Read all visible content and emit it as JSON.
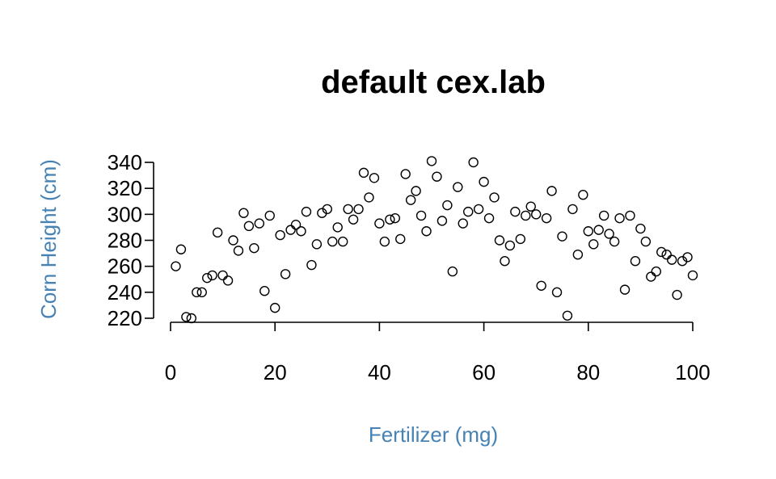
{
  "chart_data": {
    "type": "scatter",
    "title": "default cex.lab",
    "xlabel": "Fertilizer (mg)",
    "ylabel": "Corn Height (cm)",
    "label_color": "#4682B4",
    "xlim": [
      0,
      100
    ],
    "ylim": [
      220,
      340
    ],
    "x_ticks": [
      0,
      20,
      40,
      60,
      80,
      100
    ],
    "y_ticks": [
      220,
      240,
      260,
      280,
      300,
      320,
      340
    ],
    "grid": false,
    "marker": "open-circle",
    "x": [
      1,
      2,
      3,
      4,
      5,
      6,
      7,
      8,
      9,
      10,
      11,
      12,
      13,
      14,
      15,
      16,
      17,
      18,
      19,
      20,
      21,
      22,
      23,
      24,
      25,
      26,
      27,
      28,
      29,
      30,
      31,
      32,
      33,
      34,
      35,
      36,
      37,
      38,
      39,
      40,
      41,
      42,
      43,
      44,
      45,
      46,
      47,
      48,
      49,
      50,
      51,
      52,
      53,
      54,
      55,
      56,
      57,
      58,
      59,
      60,
      61,
      62,
      63,
      64,
      65,
      66,
      67,
      68,
      69,
      70,
      71,
      72,
      73,
      74,
      75,
      76,
      77,
      78,
      79,
      80,
      81,
      82,
      83,
      84,
      85,
      86,
      87,
      88,
      89,
      90,
      91,
      92,
      93,
      94,
      95,
      96,
      97,
      98,
      99,
      100
    ],
    "y": [
      260,
      273,
      221,
      220,
      240,
      240,
      251,
      253,
      286,
      253,
      249,
      280,
      272,
      301,
      291,
      274,
      293,
      241,
      299,
      228,
      284,
      254,
      288,
      292,
      287,
      302,
      261,
      277,
      301,
      304,
      279,
      290,
      279,
      304,
      296,
      304,
      332,
      313,
      328,
      293,
      279,
      296,
      297,
      281,
      331,
      311,
      318,
      299,
      287,
      341,
      329,
      295,
      307,
      256,
      321,
      293,
      302,
      340,
      304,
      325,
      297,
      313,
      280,
      264,
      276,
      302,
      281,
      299,
      306,
      300,
      245,
      297,
      318,
      240,
      283,
      222,
      304,
      269,
      315,
      287,
      277,
      288,
      299,
      285,
      279,
      297,
      242,
      299,
      264,
      289,
      279,
      252,
      256,
      271,
      269,
      265,
      238,
      264,
      267,
      253
    ]
  }
}
